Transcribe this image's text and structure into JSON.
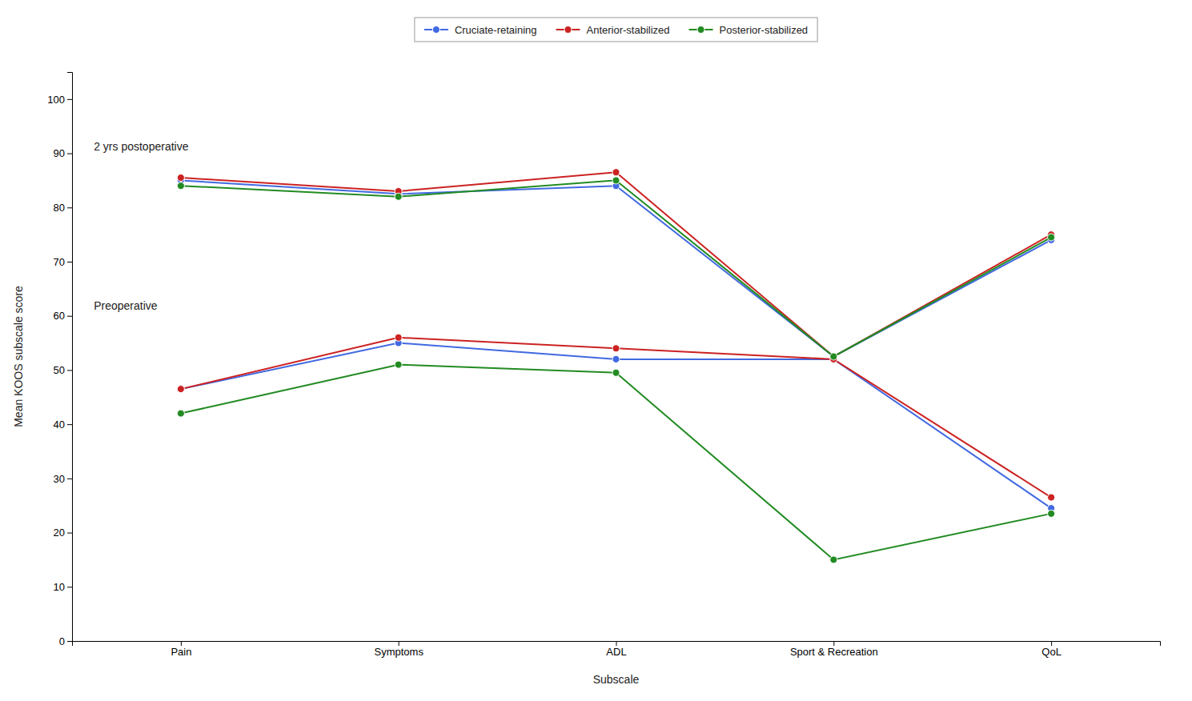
{
  "chart_data": {
    "type": "line",
    "xlabel": "Subscale",
    "ylabel": "Mean KOOS subscale score",
    "categories": [
      "Pain",
      "Symptoms",
      "ADL",
      "Sport & Recreation",
      "QoL"
    ],
    "series": [
      {
        "name": "Cruciate-retaining",
        "color": "#4169E1",
        "values": [
          85.0,
          82.5,
          84.0,
          52.5,
          74.0
        ]
      },
      {
        "color": "#4169E1",
        "values": [
          46.5,
          55.0,
          52.0,
          52.0,
          24.5
        ]
      },
      {
        "name": "Anterior-stabilized",
        "color": "#CC2222",
        "values": [
          85.5,
          83.0,
          86.5,
          52.5,
          75.0
        ]
      },
      {
        "color": "#CC2222",
        "values": [
          46.5,
          56.0,
          54.0,
          52.0,
          26.5
        ]
      },
      {
        "name": "Posterior-stabilized",
        "color": "#228B22",
        "values": [
          84.0,
          82.0,
          85.0,
          52.5,
          74.5
        ]
      },
      {
        "color": "#228B22",
        "values": [
          42.0,
          51.0,
          49.5,
          15.0,
          23.5
        ]
      }
    ],
    "annotations": [
      "2 yrs postoperative",
      "Preoperative"
    ],
    "ylim": [
      0,
      105
    ],
    "yticks": [
      0,
      10,
      20,
      30,
      40,
      50,
      60,
      70,
      80,
      90,
      100
    ],
    "marker": "circle",
    "grid": false,
    "legend": "top"
  }
}
